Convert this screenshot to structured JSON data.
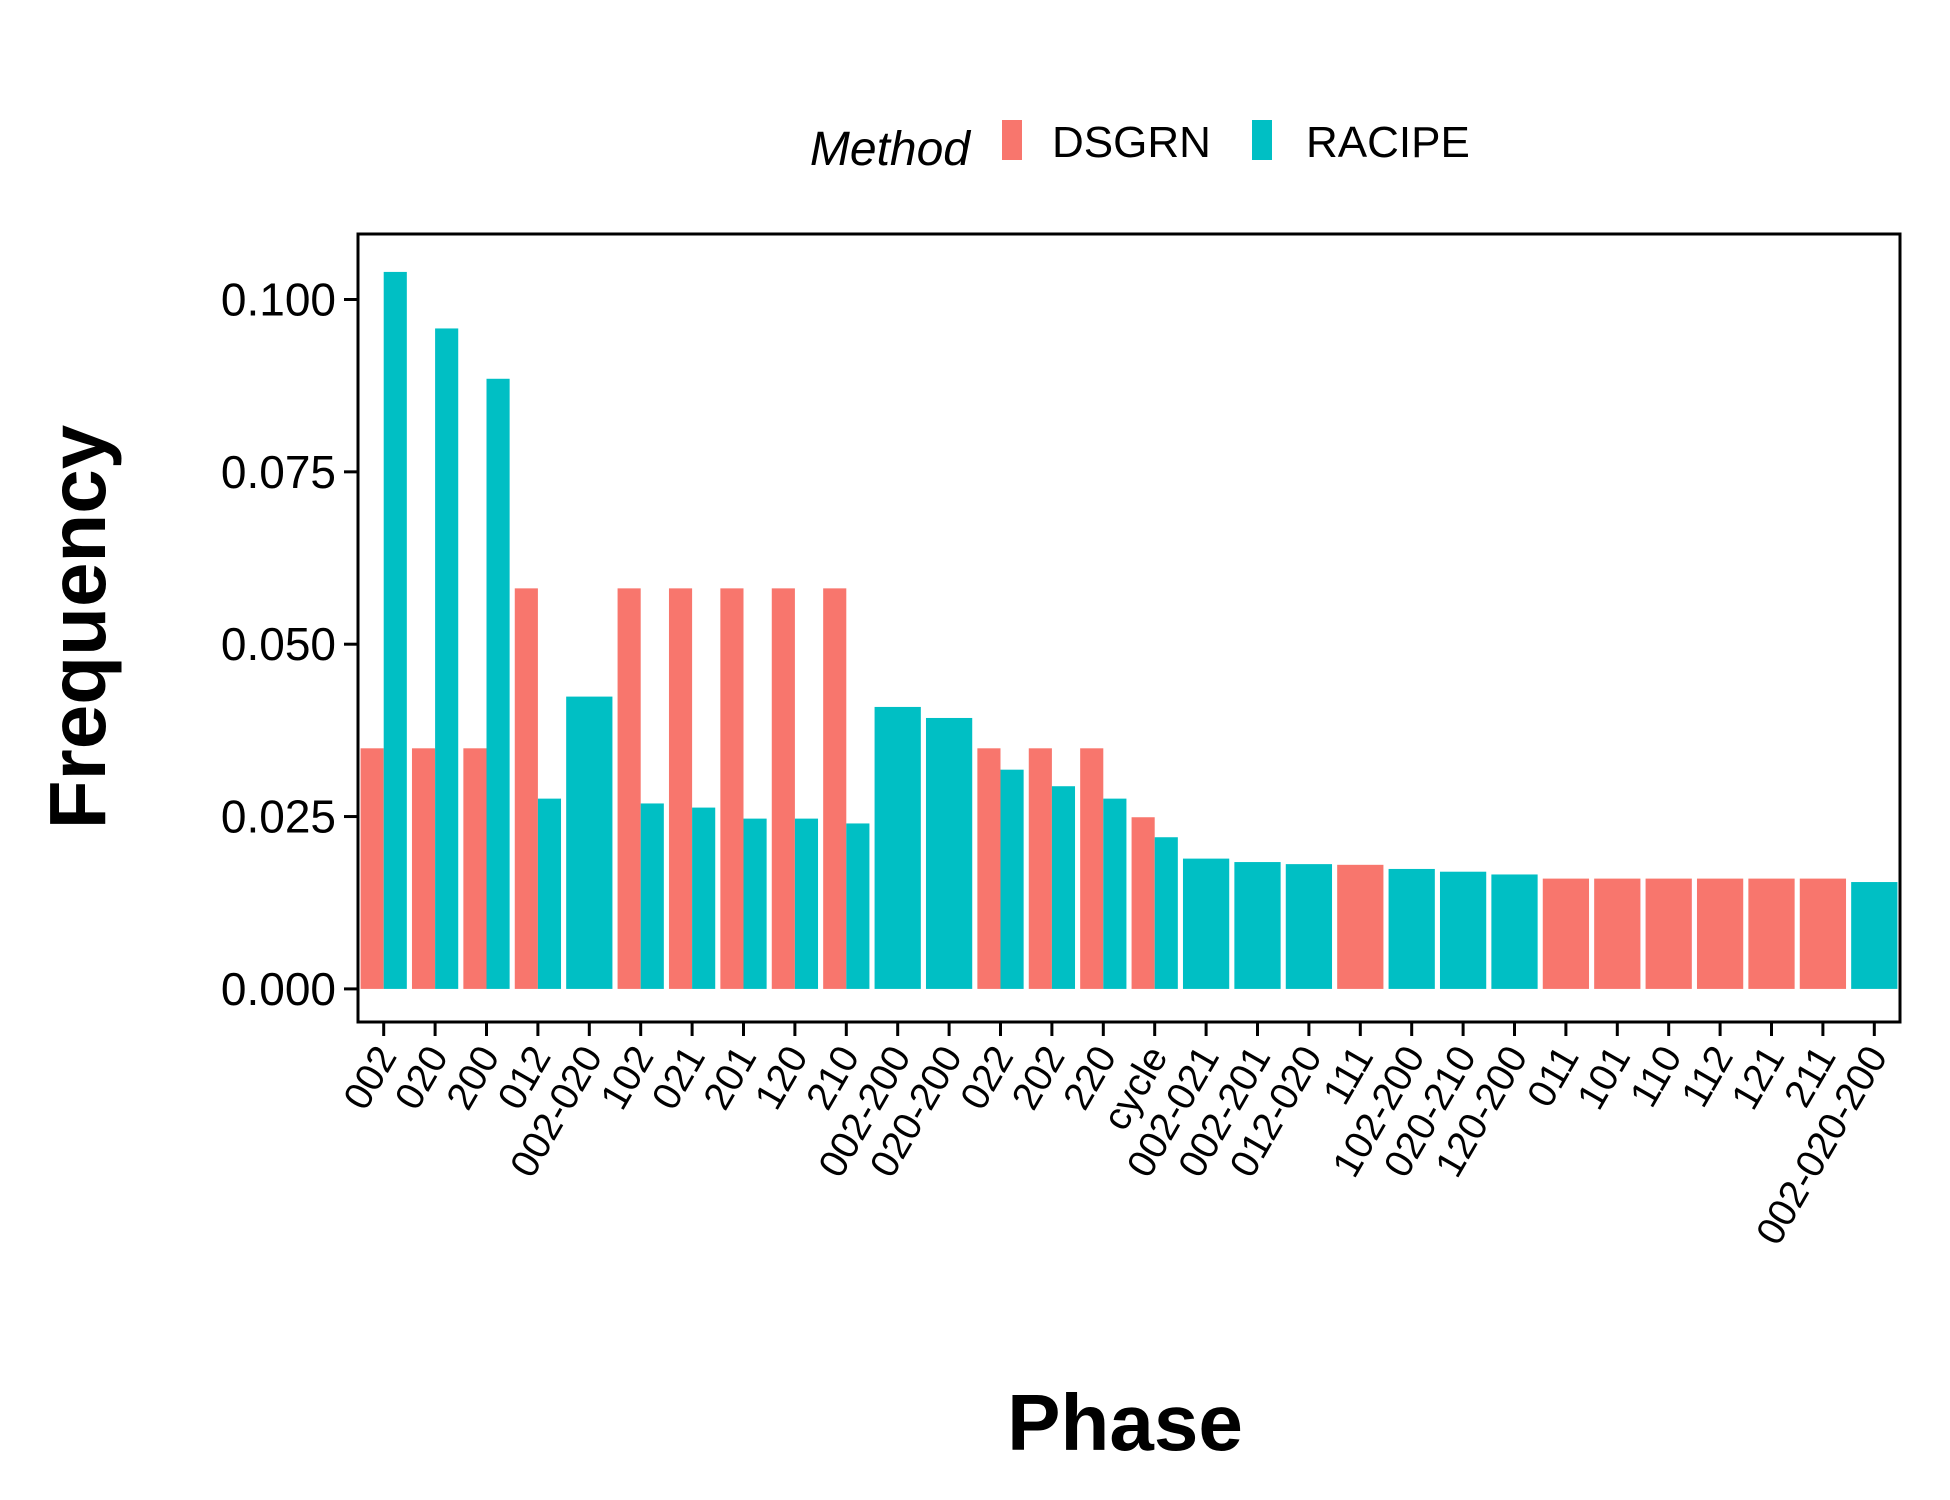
{
  "chart_data": {
    "type": "bar",
    "xlabel": "Phase",
    "ylabel": "Frequency",
    "ylim": [
      -0.0048,
      0.1095
    ],
    "yticks": [
      "0.000",
      "0.025",
      "0.050",
      "0.075",
      "0.100"
    ],
    "legend": {
      "title": "Method",
      "position": "top",
      "entries": [
        "DSGRN",
        "RACIPE"
      ]
    },
    "colors": {
      "DSGRN": "#F8766D",
      "RACIPE": "#00BFC4"
    },
    "grid": false,
    "categories": [
      "002",
      "020",
      "200",
      "012",
      "002-020",
      "102",
      "021",
      "201",
      "120",
      "210",
      "002-200",
      "020-200",
      "022",
      "202",
      "220",
      "cycle",
      "002-021",
      "002-201",
      "012-020",
      "111",
      "102-200",
      "020-210",
      "120-200",
      "011",
      "101",
      "110",
      "112",
      "121",
      "211",
      "002-020-200"
    ],
    "series": [
      {
        "name": "DSGRN",
        "values": [
          0.0349,
          0.0349,
          0.0349,
          0.0581,
          null,
          0.0581,
          0.0581,
          0.0581,
          0.0581,
          0.0581,
          null,
          null,
          0.0349,
          0.0349,
          0.0349,
          0.0249,
          null,
          null,
          null,
          0.018,
          null,
          null,
          null,
          0.016,
          0.016,
          0.016,
          0.016,
          0.016,
          0.016,
          null
        ]
      },
      {
        "name": "RACIPE",
        "values": [
          0.104,
          0.0958,
          0.0885,
          0.0276,
          0.0424,
          0.0269,
          0.0263,
          0.0247,
          0.0247,
          0.024,
          0.0409,
          0.0393,
          0.0318,
          0.0294,
          0.0276,
          0.022,
          0.0189,
          0.0184,
          0.0181,
          null,
          0.0174,
          0.017,
          0.0166,
          null,
          null,
          null,
          null,
          null,
          null,
          0.0155
        ]
      }
    ]
  }
}
